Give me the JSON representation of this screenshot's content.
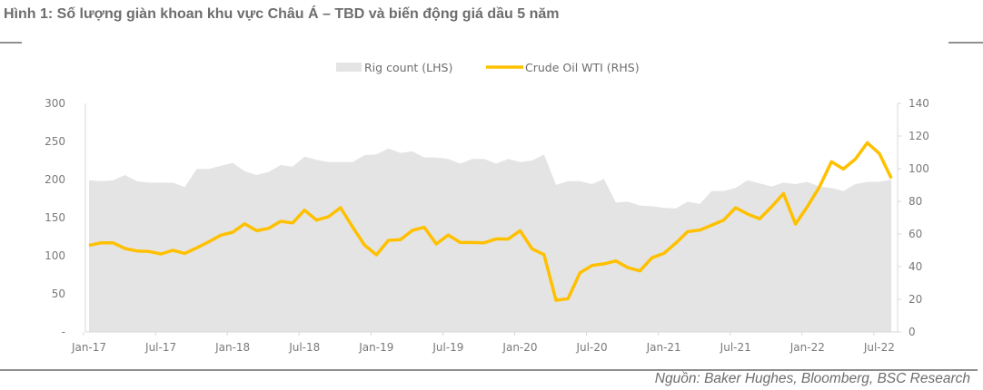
{
  "title": "Hình 1: Số lượng giàn khoan khu vực Châu Á – TBD và biến động giá dầu 5 năm",
  "source": "Nguồn: Baker Hughes, Bloomberg, BSC Research",
  "chart_data": {
    "type": "area+line",
    "legend_position": "top-center",
    "grid": false,
    "x_tick_labels": [
      "Jan-17",
      "Jul-17",
      "Jan-18",
      "Jul-18",
      "Jan-19",
      "Jul-19",
      "Jan-20",
      "Jul-20",
      "Jan-21",
      "Jul-21",
      "Jan-22",
      "Jul-22"
    ],
    "x_start": "Jan-17",
    "x_end": "Aug-22",
    "y_left": {
      "ylim": [
        0,
        300
      ],
      "tick_labels": [
        "-",
        "50",
        "100",
        "150",
        "200",
        "250",
        "300"
      ]
    },
    "y_right": {
      "ylim": [
        0,
        140
      ],
      "tick_labels": [
        "0",
        "20",
        "40",
        "60",
        "80",
        "100",
        "120",
        "140"
      ]
    },
    "colors": {
      "rig": "#e4e4e4",
      "oil": "#ffc000"
    },
    "series": [
      {
        "name": "Rig count (LHS)",
        "type": "area",
        "axis": "left",
        "values": [
          199,
          198,
          199,
          206,
          198,
          196,
          196,
          196,
          190,
          214,
          214,
          218,
          222,
          211,
          206,
          210,
          219,
          217,
          230,
          226,
          223,
          223,
          223,
          232,
          233,
          241,
          235,
          237,
          229,
          229,
          227,
          221,
          227,
          227,
          221,
          227,
          223,
          225,
          233,
          193,
          198,
          198,
          194,
          201,
          170,
          171,
          166,
          165,
          163,
          162,
          171,
          168,
          185,
          185,
          189,
          199,
          195,
          191,
          196,
          194,
          197,
          191,
          189,
          185,
          194,
          197,
          197,
          200
        ]
      },
      {
        "name": "Crude Oil WTI (RHS)",
        "type": "line",
        "axis": "right",
        "values": [
          53.0,
          54.6,
          54.6,
          51.1,
          49.6,
          49.3,
          47.8,
          50.0,
          48.1,
          51.5,
          55.2,
          59.3,
          61.1,
          66.3,
          62.0,
          63.5,
          67.8,
          66.8,
          74.6,
          68.5,
          70.6,
          76.1,
          64.4,
          53.3,
          47.2,
          56.1,
          56.5,
          62.2,
          64.1,
          53.9,
          59.4,
          54.8,
          54.8,
          54.6,
          57.0,
          56.9,
          62.0,
          50.9,
          47.4,
          19.4,
          20.4,
          36.3,
          40.7,
          41.7,
          43.5,
          39.4,
          37.4,
          45.4,
          48.1,
          54.4,
          61.5,
          62.4,
          65.4,
          68.5,
          76.1,
          72.2,
          69.3,
          76.7,
          84.8,
          66.1,
          76.9,
          88.9,
          104.3,
          99.8,
          105.9,
          115.9,
          109.3,
          94.1
        ]
      }
    ]
  }
}
